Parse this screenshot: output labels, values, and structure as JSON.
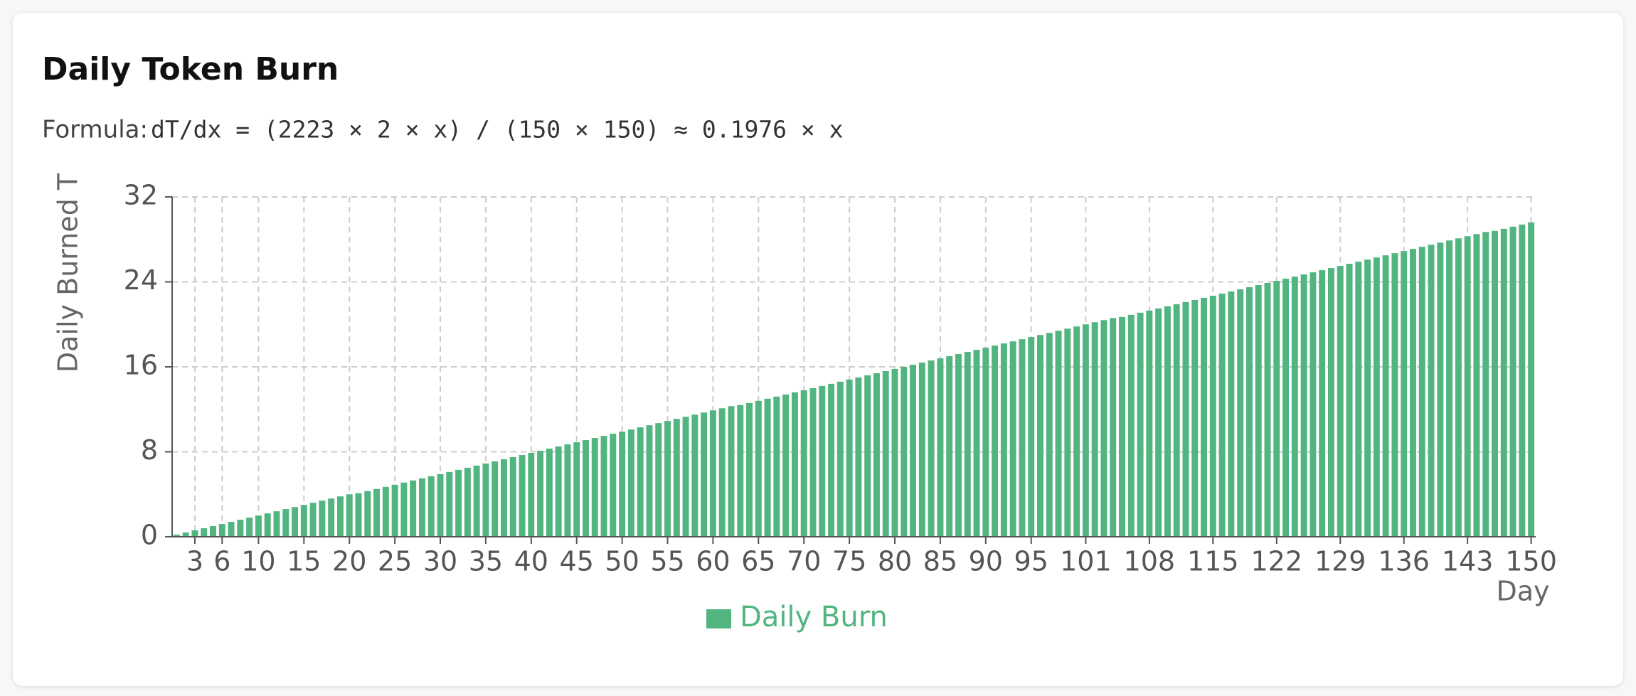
{
  "chart_data": {
    "type": "bar",
    "title": "Daily Token Burn",
    "subtitle": {
      "label": "Formula:",
      "text": "dT/dx = (2223 × 2 × x) / (150 × 150) ≈ 0.1976 × x"
    },
    "y_label": "Daily Burned T",
    "x_label": "Day",
    "categories": [
      null,
      null,
      3,
      null,
      null,
      6,
      null,
      null,
      null,
      10,
      null,
      null,
      null,
      null,
      15,
      null,
      null,
      null,
      null,
      20,
      null,
      null,
      null,
      null,
      25,
      null,
      null,
      null,
      null,
      30,
      null,
      null,
      null,
      null,
      35,
      null,
      null,
      null,
      null,
      40,
      null,
      null,
      null,
      null,
      45,
      null,
      null,
      null,
      null,
      50,
      null,
      null,
      null,
      null,
      55,
      null,
      null,
      null,
      null,
      60,
      null,
      null,
      null,
      null,
      65,
      null,
      null,
      null,
      null,
      70,
      null,
      null,
      null,
      null,
      75,
      null,
      null,
      null,
      null,
      80,
      null,
      null,
      null,
      null,
      85,
      null,
      null,
      null,
      null,
      90,
      null,
      null,
      null,
      null,
      95,
      null,
      null,
      null,
      null,
      null,
      101,
      null,
      null,
      null,
      null,
      null,
      null,
      108,
      null,
      null,
      null,
      null,
      null,
      null,
      115,
      null,
      null,
      null,
      null,
      null,
      null,
      122,
      null,
      null,
      null,
      null,
      null,
      null,
      129,
      null,
      null,
      null,
      null,
      null,
      null,
      136,
      null,
      null,
      null,
      null,
      null,
      null,
      143,
      null,
      null,
      null,
      null,
      null,
      null,
      150
    ],
    "series": [
      {
        "name": "Daily Burn",
        "color": "#52b57f",
        "values": [
          0.2,
          0.4,
          0.6,
          0.8,
          1.0,
          1.2,
          1.4,
          1.6,
          1.8,
          2.0,
          2.2,
          2.4,
          2.6,
          2.8,
          3.0,
          3.2,
          3.4,
          3.6,
          3.8,
          4.0,
          4.1,
          4.3,
          4.5,
          4.7,
          4.9,
          5.1,
          5.3,
          5.5,
          5.7,
          5.9,
          6.1,
          6.3,
          6.5,
          6.7,
          6.9,
          7.1,
          7.3,
          7.5,
          7.7,
          7.9,
          8.1,
          8.3,
          8.5,
          8.7,
          8.9,
          9.1,
          9.3,
          9.5,
          9.7,
          9.9,
          10.1,
          10.3,
          10.5,
          10.7,
          10.9,
          11.1,
          11.3,
          11.5,
          11.7,
          11.9,
          12.1,
          12.3,
          12.4,
          12.6,
          12.8,
          13.0,
          13.2,
          13.4,
          13.6,
          13.8,
          14.0,
          14.2,
          14.4,
          14.6,
          14.8,
          15.0,
          15.2,
          15.4,
          15.6,
          15.8,
          16.0,
          16.2,
          16.4,
          16.6,
          16.8,
          17.0,
          17.2,
          17.4,
          17.6,
          17.8,
          18.0,
          18.2,
          18.4,
          18.6,
          18.8,
          19.0,
          19.2,
          19.4,
          19.6,
          19.8,
          20.0,
          20.2,
          20.4,
          20.6,
          20.7,
          20.9,
          21.1,
          21.3,
          21.5,
          21.7,
          21.9,
          22.1,
          22.3,
          22.5,
          22.7,
          22.9,
          23.1,
          23.3,
          23.5,
          23.7,
          23.9,
          24.1,
          24.3,
          24.5,
          24.7,
          24.9,
          25.1,
          25.3,
          25.5,
          25.7,
          25.9,
          26.1,
          26.3,
          26.5,
          26.7,
          26.9,
          27.1,
          27.3,
          27.5,
          27.7,
          27.9,
          28.1,
          28.3,
          28.5,
          28.7,
          28.8,
          29.0,
          29.2,
          29.4,
          29.6
        ]
      }
    ],
    "ylim": [
      0,
      32
    ],
    "yticks": [
      0,
      8,
      16,
      24,
      32
    ],
    "grid": true
  }
}
